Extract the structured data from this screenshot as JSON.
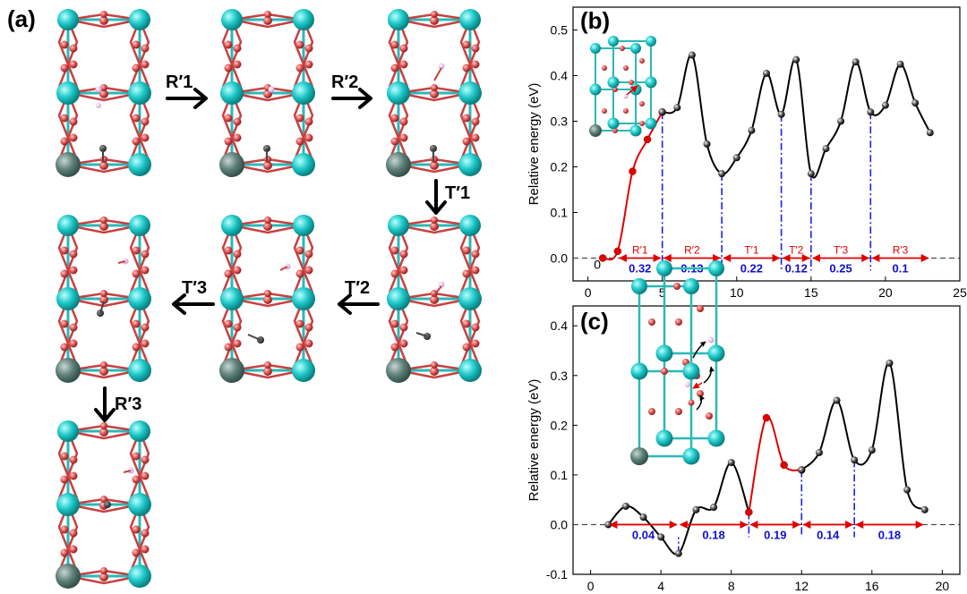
{
  "panel_a": {
    "label": "(a)",
    "steps": [
      "R′1",
      "R′2",
      "T′1",
      "T′2",
      "T′3",
      "R′3"
    ]
  },
  "chart_data": [
    {
      "type": "line",
      "panel_label": "(b)",
      "title": "",
      "xlabel": "",
      "ylabel": "Relative energy (eV)",
      "xlim": [
        -1,
        25
      ],
      "ylim": [
        -0.05,
        0.55
      ],
      "xticks": [
        0,
        5,
        10,
        15,
        20,
        25
      ],
      "yticks": [
        "0.0",
        "0.1",
        "0.2",
        "0.3",
        "0.4",
        "0.5"
      ],
      "zero_label": "0",
      "reference_line": 0.0,
      "series": [
        {
          "color": "#e00000",
          "x": [
            1,
            2,
            3,
            4,
            5
          ],
          "y": [
            0.0,
            0.015,
            0.19,
            0.26,
            0.32
          ]
        },
        {
          "color": "#000000",
          "x": [
            5,
            6,
            7,
            8,
            9,
            10,
            11,
            12,
            13,
            14,
            15,
            16,
            17,
            18,
            19,
            20,
            21,
            22,
            23
          ],
          "y": [
            0.32,
            0.33,
            0.445,
            0.25,
            0.185,
            0.22,
            0.28,
            0.405,
            0.315,
            0.435,
            0.185,
            0.24,
            0.3,
            0.43,
            0.32,
            0.335,
            0.425,
            0.34,
            0.275
          ]
        }
      ],
      "dividers": [
        5,
        9,
        13,
        15,
        19
      ],
      "segments": [
        {
          "label": "R′1",
          "barrier": "0.32",
          "x0": 2,
          "x1": 5
        },
        {
          "label": "R′2",
          "barrier": "0.13",
          "x0": 5,
          "x1": 9
        },
        {
          "label": "T′1",
          "barrier": "0.22",
          "x0": 9,
          "x1": 13
        },
        {
          "label": "T′2",
          "barrier": "0.12",
          "x0": 13,
          "x1": 15
        },
        {
          "label": "T′3",
          "barrier": "0.25",
          "x0": 15,
          "x1": 19
        },
        {
          "label": "R′3",
          "barrier": "0.1",
          "x0": 19,
          "x1": 23
        }
      ]
    },
    {
      "type": "line",
      "panel_label": "(c)",
      "title": "",
      "xlabel": "",
      "ylabel": "Relative energy (eV)",
      "xlim": [
        -1,
        21
      ],
      "ylim": [
        -0.1,
        0.44
      ],
      "xticks": [
        0,
        4,
        8,
        12,
        16,
        20
      ],
      "yticks": [
        "-0.1",
        "0.0",
        "0.1",
        "0.2",
        "0.3",
        "0.4"
      ],
      "reference_line": 0.0,
      "series": [
        {
          "color": "#000000",
          "x": [
            1,
            2,
            3,
            4,
            5,
            6,
            7,
            8,
            9
          ],
          "y": [
            0.0,
            0.037,
            0.015,
            -0.025,
            -0.058,
            0.03,
            0.035,
            0.125,
            0.025
          ]
        },
        {
          "color": "#e00000",
          "x": [
            9,
            10,
            11,
            12
          ],
          "y": [
            0.025,
            0.215,
            0.12,
            0.11
          ]
        },
        {
          "color": "#000000",
          "x": [
            12,
            13,
            14,
            15,
            16,
            17,
            18,
            19
          ],
          "y": [
            0.11,
            0.145,
            0.25,
            0.13,
            0.15,
            0.325,
            0.07,
            0.03
          ]
        }
      ],
      "dividers": [
        5,
        9,
        12,
        15
      ],
      "segments": [
        {
          "label": "",
          "barrier": "0.04",
          "x0": 1,
          "x1": 5
        },
        {
          "label": "",
          "barrier": "0.18",
          "x0": 5,
          "x1": 9
        },
        {
          "label": "",
          "barrier": "0.19",
          "x0": 9,
          "x1": 12
        },
        {
          "label": "",
          "barrier": "0.14",
          "x0": 12,
          "x1": 15
        },
        {
          "label": "",
          "barrier": "0.18",
          "x0": 15,
          "x1": 19
        }
      ]
    }
  ],
  "colors": {
    "ti": "#1cc6c6",
    "oxygen": "#d84a4a",
    "dopant": "#5e7f78",
    "hydrogen": "#e7b7e6",
    "carbon": "#3a3a3a"
  }
}
